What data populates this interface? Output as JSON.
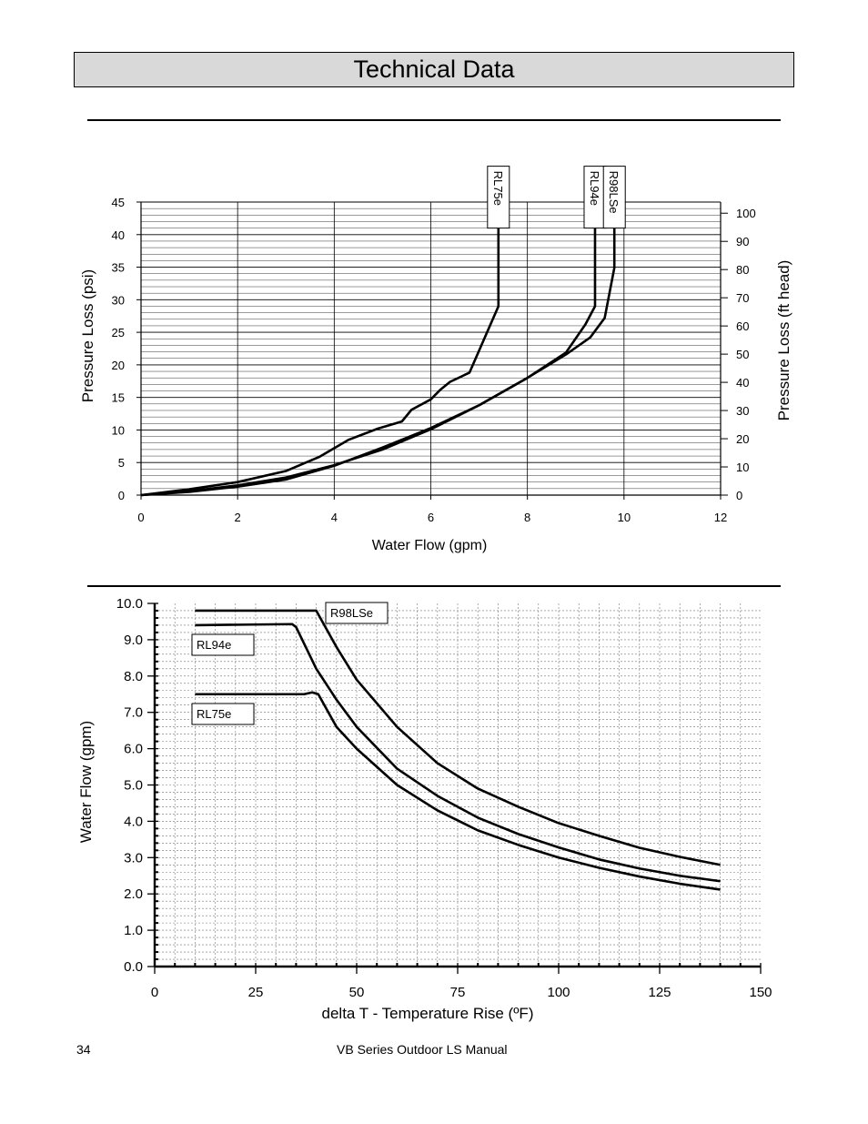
{
  "page": {
    "title": "Technical Data",
    "footer_page": "34",
    "footer_title": "VB Series Outdoor LS Manual"
  },
  "chart_data": [
    {
      "type": "line",
      "title": "",
      "xlabel": "Water Flow (gpm)",
      "ylabel": "Pressure Loss (psi)",
      "y2label": "Pressure Loss (ft head)",
      "xlim": [
        0,
        12
      ],
      "ylim": [
        0,
        45
      ],
      "y2lim": [
        0,
        103.95
      ],
      "xticks": [
        0,
        2,
        4,
        6,
        8,
        10,
        12
      ],
      "yticks": [
        0,
        5,
        10,
        15,
        20,
        25,
        30,
        35,
        40,
        45
      ],
      "y2ticks": [
        0,
        10,
        20,
        30,
        40,
        50,
        60,
        70,
        80,
        90,
        100
      ],
      "grid": true,
      "legend": "labels at top of each curve",
      "series": [
        {
          "name": "RL75e",
          "x": [
            0,
            1,
            2,
            3,
            3.7,
            4.3,
            4.9,
            5.4,
            5.6,
            6.0,
            6.2,
            6.4,
            6.8,
            7.4,
            7.4
          ],
          "y": [
            0,
            0.9,
            2.0,
            3.7,
            5.9,
            8.5,
            10.2,
            11.3,
            13.1,
            14.7,
            16.2,
            17.4,
            18.8,
            29.0,
            41
          ]
        },
        {
          "name": "RL94e",
          "x": [
            0,
            1,
            2,
            3,
            4,
            5,
            6,
            7,
            8,
            8.8,
            9.2,
            9.4,
            9.4
          ],
          "y": [
            0,
            0.6,
            1.5,
            2.7,
            4.6,
            7.0,
            10.1,
            13.8,
            18.0,
            21.9,
            26.2,
            29.0,
            41
          ]
        },
        {
          "name": "R98LSe",
          "x": [
            0,
            1,
            2,
            3,
            4,
            5,
            6,
            7,
            8,
            8.8,
            9.3,
            9.6,
            9.8,
            9.8
          ],
          "y": [
            0,
            0.5,
            1.3,
            2.4,
            4.5,
            7.3,
            10.3,
            13.8,
            18.0,
            21.6,
            24.2,
            27.2,
            34.9,
            41
          ]
        }
      ]
    },
    {
      "type": "line",
      "title": "",
      "xlabel": "delta T - Temperature Rise (ºF)",
      "ylabel": "Water Flow (gpm)",
      "xlim": [
        0,
        150
      ],
      "ylim": [
        0,
        10
      ],
      "xticks": [
        0,
        25,
        50,
        75,
        100,
        125,
        150
      ],
      "yticks": [
        "0.0",
        "1.0",
        "2.0",
        "3.0",
        "4.0",
        "5.0",
        "6.0",
        "7.0",
        "8.0",
        "9.0",
        "10.0"
      ],
      "grid": true,
      "legend": "boxed labels beside each curve",
      "series": [
        {
          "name": "R98LSe",
          "x": [
            10,
            40,
            45,
            50,
            60,
            70,
            80,
            90,
            100,
            110,
            120,
            130,
            140
          ],
          "y": [
            9.8,
            9.8,
            8.8,
            7.9,
            6.6,
            5.6,
            4.9,
            4.4,
            3.95,
            3.6,
            3.27,
            3.02,
            2.8
          ]
        },
        {
          "name": "RL94e",
          "x": [
            10,
            34,
            35,
            40,
            45,
            50,
            60,
            70,
            80,
            90,
            100,
            110,
            120,
            130,
            140
          ],
          "y": [
            9.4,
            9.43,
            9.35,
            8.2,
            7.35,
            6.6,
            5.45,
            4.7,
            4.1,
            3.65,
            3.28,
            2.95,
            2.7,
            2.5,
            2.35
          ]
        },
        {
          "name": "RL75e",
          "x": [
            10,
            37,
            39,
            40.5,
            42,
            45,
            50,
            60,
            70,
            80,
            90,
            100,
            110,
            120,
            130,
            140
          ],
          "y": [
            7.5,
            7.5,
            7.55,
            7.5,
            7.2,
            6.6,
            6.0,
            5.0,
            4.3,
            3.75,
            3.35,
            3.0,
            2.72,
            2.48,
            2.28,
            2.12
          ]
        }
      ]
    }
  ]
}
